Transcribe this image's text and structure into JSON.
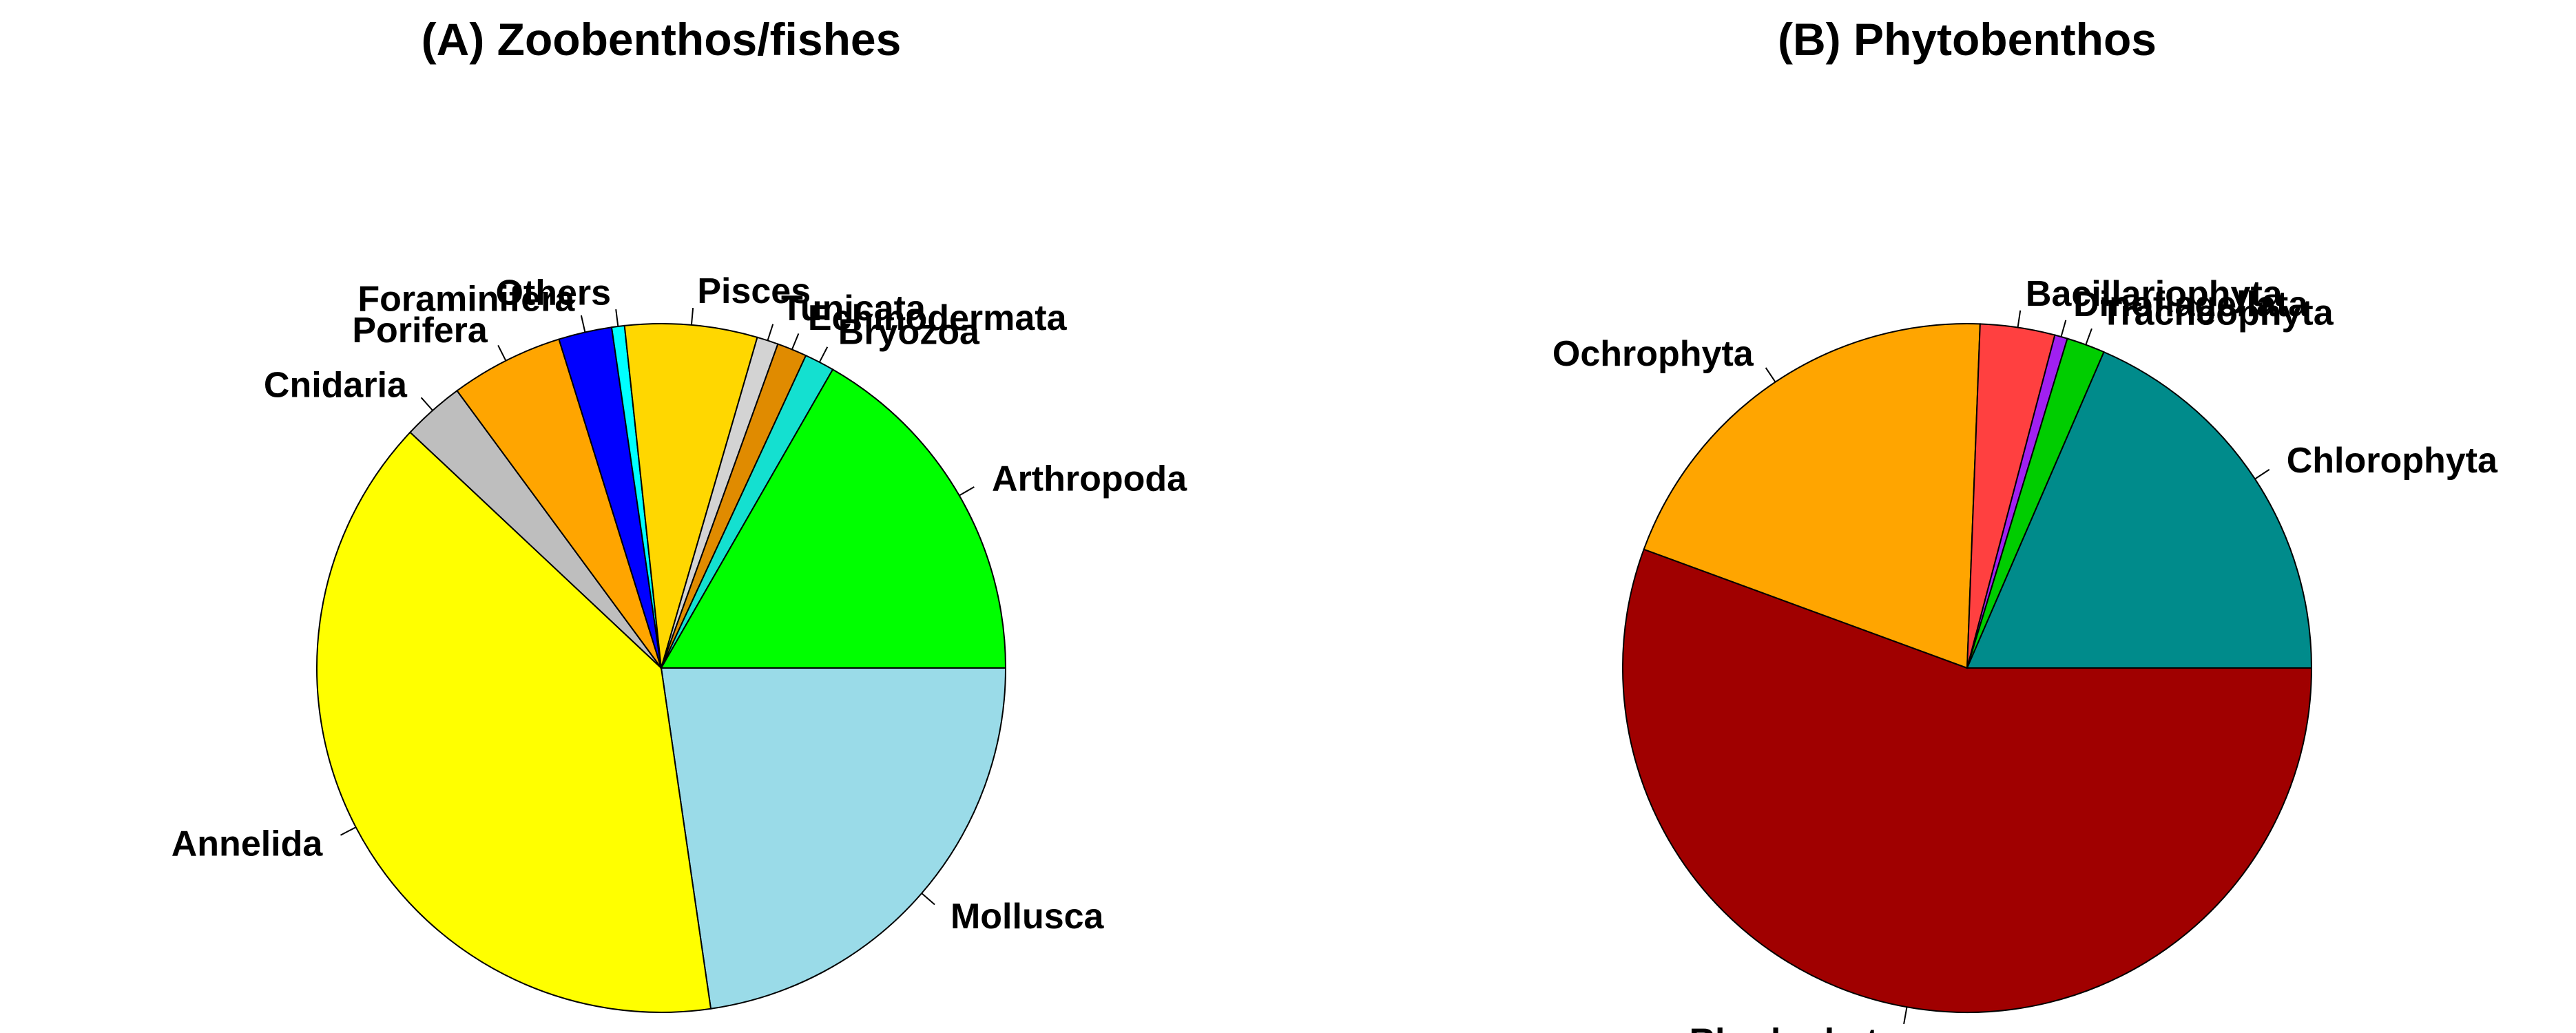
{
  "chart_data": [
    {
      "type": "pie",
      "title": "(A) Zoobenthos/fishes",
      "slices": [
        {
          "label": "Mollusca",
          "value": 22.7,
          "color": "#9ADBE8"
        },
        {
          "label": "Annelida",
          "value": 39.3,
          "color": "#FFFF00"
        },
        {
          "label": "Cnidaria",
          "value": 2.9,
          "color": "#BEBEBE"
        },
        {
          "label": "Porifera",
          "value": 5.3,
          "color": "#FFA500"
        },
        {
          "label": "Foraminifera",
          "value": 2.5,
          "color": "#0000FF"
        },
        {
          "label": "Others",
          "value": 0.6,
          "color": "#00FFFF"
        },
        {
          "label": "Pisces",
          "value": 6.2,
          "color": "#FFD700"
        },
        {
          "label": "Tunicata",
          "value": 1.0,
          "color": "#D3D3D3"
        },
        {
          "label": "Echinodermata",
          "value": 1.4,
          "color": "#E08B00"
        },
        {
          "label": "Bryozoa",
          "value": 1.4,
          "color": "#14E0D0"
        },
        {
          "label": "Arthropoda",
          "value": 16.7,
          "color": "#00FF00"
        }
      ]
    },
    {
      "type": "pie",
      "title": "(B) Phytobenthos",
      "slices": [
        {
          "label": "Rhodophyta",
          "value": 55.6,
          "color": "#A00000"
        },
        {
          "label": "Ochrophyta",
          "value": 20.0,
          "color": "#FFA500"
        },
        {
          "label": "Bacillariophyta",
          "value": 3.5,
          "color": "#FF4040"
        },
        {
          "label": "Dinoflagellata",
          "value": 0.6,
          "color": "#A020F0"
        },
        {
          "label": "Tracheophyta",
          "value": 1.8,
          "color": "#00CD00"
        },
        {
          "label": "Chlorophyta",
          "value": 18.5,
          "color": "#008B8B"
        }
      ]
    }
  ]
}
